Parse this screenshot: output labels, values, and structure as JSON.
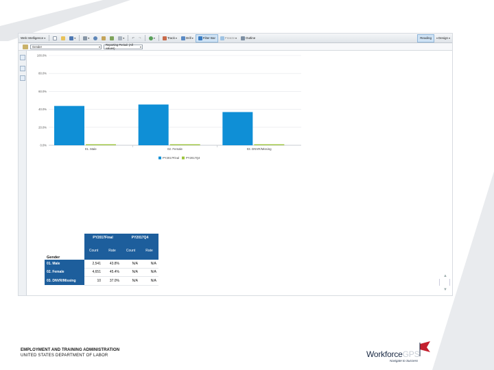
{
  "toolbar": {
    "app_name": "Web Intelligence",
    "track_label": "Track",
    "drill_label": "Drill",
    "filter_bar_label": "Filter Bar",
    "freeze_label": "Freeze",
    "outline_label": "Outline",
    "reading_label": "Reading",
    "design_label": "Design"
  },
  "filterbar": {
    "dimension": "Gender",
    "prompt": "Reporting Period: (All values)"
  },
  "chart_data": {
    "type": "bar",
    "categories": [
      "01. Male",
      "02. Female",
      "03. DNVR/Missing"
    ],
    "series": [
      {
        "name": "PY2017Final",
        "values": [
          43.8,
          45.4,
          37.0
        ]
      },
      {
        "name": "PY2017Q4",
        "values": [
          0,
          0,
          0
        ]
      }
    ],
    "y_ticks": [
      "100.0%",
      "80.0%",
      "60.0%",
      "40.0%",
      "20.0%",
      "0.0%"
    ],
    "ylim": [
      0,
      100
    ],
    "grid": true,
    "legend": "bottom",
    "colors": [
      "#0f8fd6",
      "#9cc43a"
    ]
  },
  "table": {
    "groups": [
      "PY2017Final",
      "PY2017Q4"
    ],
    "subheaders": [
      "Count",
      "Rate",
      "Count",
      "Rate"
    ],
    "dimension_header": "Gender",
    "rows": [
      {
        "label": "01. Male",
        "cells": [
          "2,541",
          "43.8%",
          "N/A",
          "N/A"
        ]
      },
      {
        "label": "02. Female",
        "cells": [
          "4,651",
          "45.4%",
          "N/A",
          "N/A"
        ]
      },
      {
        "label": "03. DNVR/Missing",
        "cells": [
          "10",
          "37.0%",
          "N/A",
          "N/A"
        ]
      }
    ]
  },
  "footer": {
    "org": "EMPLOYMENT AND TRAINING ADMINISTRATION",
    "dept": "UNITED STATES DEPARTMENT OF LABOR"
  },
  "logo": {
    "text_a": "Workforce",
    "text_b": "GPS",
    "tagline": "Navigate to Success"
  }
}
